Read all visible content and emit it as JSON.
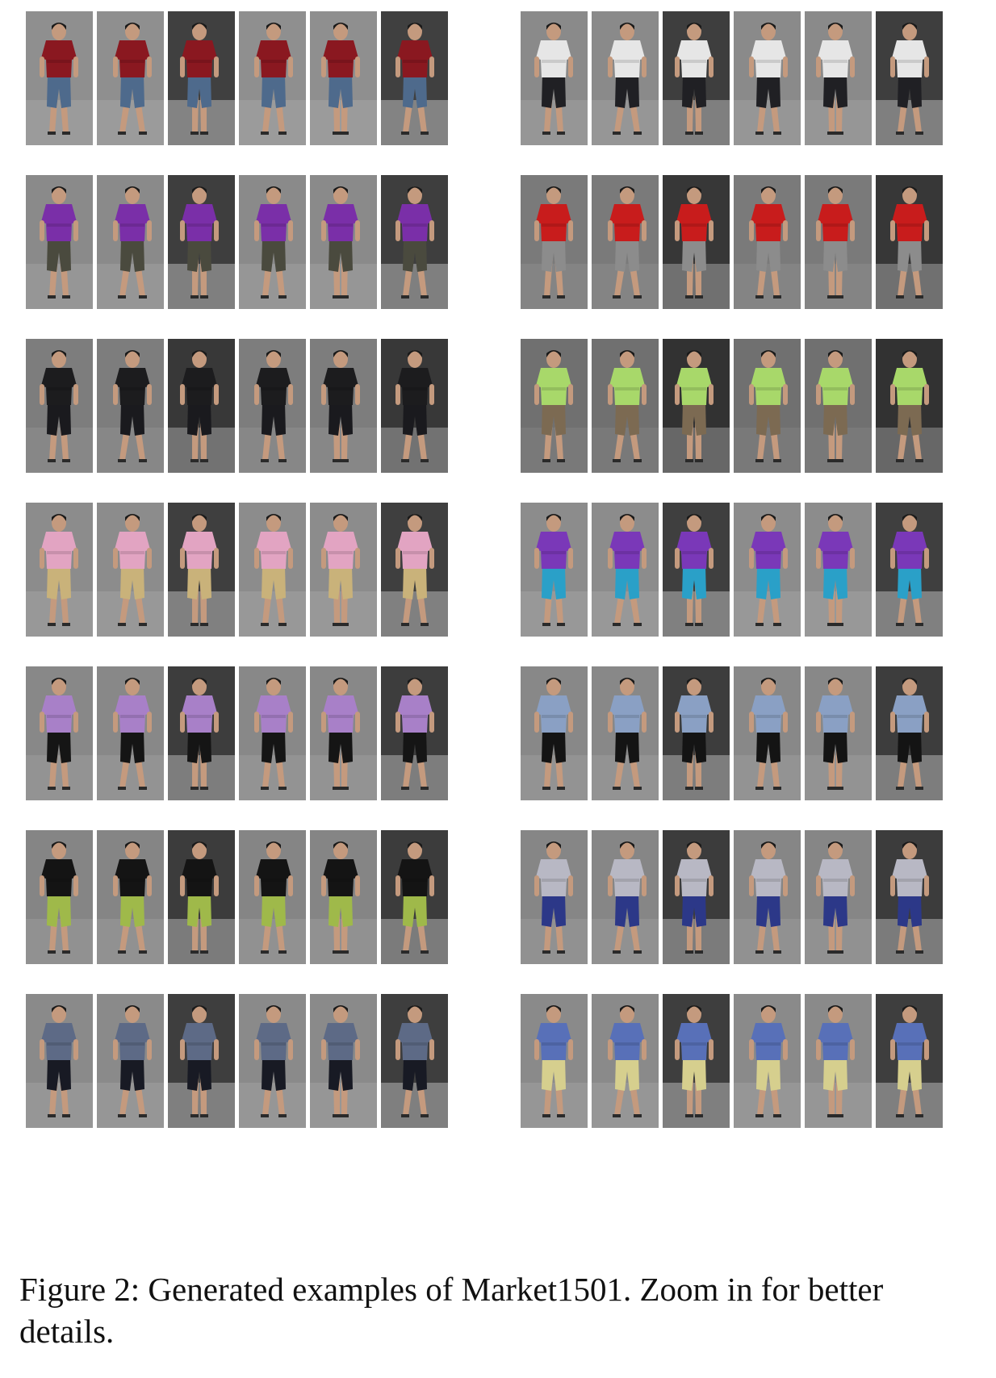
{
  "figure": {
    "caption": "Figure 2: Generated examples of Market1501. Zoom in for better details.",
    "columns_per_row": 6,
    "left_panel": [
      {
        "shirt": "#8a1820",
        "pants": "#4e6a8c",
        "bg": "#8f8f8f"
      },
      {
        "shirt": "#7a2fa8",
        "pants": "#4a4a3e",
        "bg": "#8a8a8a"
      },
      {
        "shirt": "#1c1c1e",
        "pants": "#1a1a1e",
        "bg": "#7d7d7d"
      },
      {
        "shirt": "#e2a4c2",
        "pants": "#c9b27a",
        "bg": "#8c8c8c"
      },
      {
        "shirt": "#a880c8",
        "pants": "#151515",
        "bg": "#888888"
      },
      {
        "shirt": "#141414",
        "pants": "#9fb94a",
        "bg": "#858585"
      },
      {
        "shirt": "#5d6a86",
        "pants": "#181a24",
        "bg": "#8a8a8a"
      }
    ],
    "right_panel": [
      {
        "shirt": "#e6e6e6",
        "pants": "#202024",
        "bg": "#8a8a8a"
      },
      {
        "shirt": "#c81c1c",
        "pants": "#8c8c8c",
        "bg": "#7a7a7a"
      },
      {
        "shirt": "#a8d86a",
        "pants": "#7c6a52",
        "bg": "#707070"
      },
      {
        "shirt": "#7a38b8",
        "pants": "#2aa0c8",
        "bg": "#8c8c8c"
      },
      {
        "shirt": "#8aa0c4",
        "pants": "#141414",
        "bg": "#888888"
      },
      {
        "shirt": "#b8b8c4",
        "pants": "#2c3888",
        "bg": "#868686"
      },
      {
        "shirt": "#5870b8",
        "pants": "#d6cf8e",
        "bg": "#8a8a8a"
      }
    ]
  }
}
